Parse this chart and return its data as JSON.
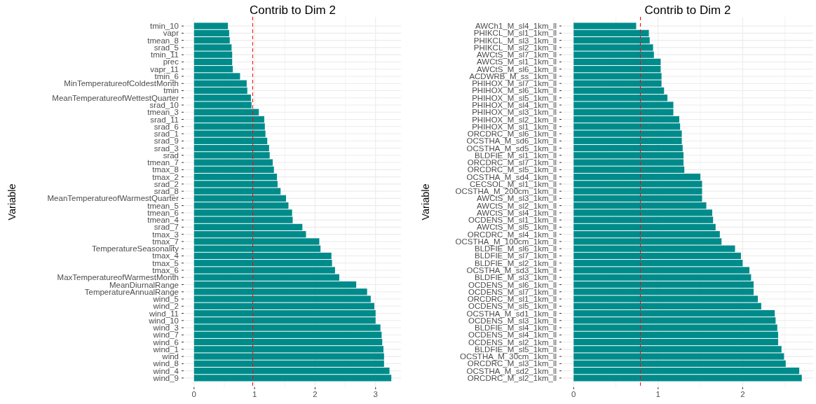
{
  "chart_data": [
    {
      "type": "bar",
      "orientation": "horizontal",
      "title": "Contrib to Dim 2",
      "ylabel": "Variable",
      "color": "#008b8b",
      "grid": true,
      "categories": [
        "tmin_10",
        "vapr",
        "tmean_8",
        "srad_5",
        "tmin_11",
        "prec",
        "vapr_11",
        "tmin_6",
        "MinTemperatureofColdestMonth",
        "tmin",
        "MeanTemperatureofWettestQuarter",
        "srad_10",
        "tmean_3",
        "srad_11",
        "srad_6",
        "srad_1",
        "srad_9",
        "srad_3",
        "srad",
        "tmean_7",
        "tmax_8",
        "tmax_2",
        "srad_2",
        "srad_8",
        "MeanTemperatureofWarmestQuarter",
        "tmean_5",
        "tmean_6",
        "tmean_4",
        "srad_7",
        "tmax_3",
        "tmax_7",
        "TemperatureSeasonality",
        "tmax_4",
        "tmax_5",
        "tmax_6",
        "MaxTemperatureofWarmestMonth",
        "MeanDiurnalRange",
        "TemperatureAnnualRange",
        "wind_5",
        "wind_2",
        "wind_11",
        "wind_10",
        "wind_3",
        "wind_7",
        "wind_6",
        "wind_1",
        "wind",
        "wind_8",
        "wind_4",
        "wind_9"
      ],
      "values": [
        0.56,
        0.58,
        0.59,
        0.62,
        0.63,
        0.63,
        0.64,
        0.76,
        0.87,
        0.88,
        0.94,
        0.95,
        1.07,
        1.16,
        1.17,
        1.18,
        1.21,
        1.24,
        1.25,
        1.3,
        1.32,
        1.37,
        1.38,
        1.43,
        1.52,
        1.56,
        1.62,
        1.63,
        1.79,
        1.85,
        2.07,
        2.09,
        2.27,
        2.28,
        2.33,
        2.4,
        2.68,
        2.86,
        2.92,
        2.98,
        3.0,
        3.0,
        3.08,
        3.1,
        3.11,
        3.13,
        3.14,
        3.14,
        3.23,
        3.26
      ],
      "xlim": [
        -0.16,
        3.42
      ],
      "xticks": [
        0,
        1,
        2,
        3
      ],
      "ref_lines": [
        {
          "axis": "x",
          "value": 0.97,
          "color": "#ff0000",
          "line_style": "dashed"
        }
      ]
    },
    {
      "type": "bar",
      "orientation": "horizontal",
      "title": "Contrib to Dim 2",
      "ylabel": "Variable",
      "color": "#008b8b",
      "grid": true,
      "categories": [
        "AWCh1_M_sl4_1km_ll",
        "PHIKCL_M_sl1_1km_ll",
        "PHIKCL_M_sl3_1km_ll",
        "PHIKCL_M_sl2_1km_ll",
        "AWCtS_M_sl7_1km_ll",
        "AWCtS_M_sl1_1km_ll",
        "AWCtS_M_sl6_1km_ll",
        "ACDWRB_M_ss_1km_ll",
        "PHIHOX_M_sl7_1km_ll",
        "PHIHOX_M_sl6_1km_ll",
        "PHIHOX_M_sl5_1km_ll",
        "PHIHOX_M_sl4_1km_ll",
        "PHIHOX_M_sl3_1km_ll",
        "PHIHOX_M_sl2_1km_ll",
        "PHIHOX_M_sl1_1km_ll",
        "ORCDRC_M_sl6_1km_ll",
        "OCSTHA_M_sd6_1km_ll",
        "OCSTHA_M_sd5_1km_ll",
        "BLDFIE_M_sl1_1km_ll",
        "ORCDRC_M_sl7_1km_ll",
        "ORCDRC_M_sl5_1km_ll",
        "OCSTHA_M_sd4_1km_ll",
        "CECSOL_M_sl1_1km_ll",
        "OCSTHA_M_200cm_1km_ll",
        "AWCtS_M_sl3_1km_ll",
        "AWCtS_M_sl2_1km_ll",
        "AWCtS_M_sl4_1km_ll",
        "OCDENS_M_sl1_1km_ll",
        "AWCtS_M_sl5_1km_ll",
        "ORCDRC_M_sl4_1km_ll",
        "OCSTHA_M_100cm_1km_ll",
        "BLDFIE_M_sl6_1km_ll",
        "BLDFIE_M_sl7_1km_ll",
        "BLDFIE_M_sl2_1km_ll",
        "OCSTHA_M_sd3_1km_ll",
        "BLDFIE_M_sl3_1km_ll",
        "OCDENS_M_sl6_1km_ll",
        "OCDENS_M_sl7_1km_ll",
        "ORCDRC_M_sl1_1km_ll",
        "OCDENS_M_sl5_1km_ll",
        "OCSTHA_M_sd1_1km_ll",
        "OCDENS_M_sl3_1km_ll",
        "BLDFIE_M_sl4_1km_ll",
        "OCDENS_M_sl4_1km_ll",
        "OCDENS_M_sl2_1km_ll",
        "BLDFIE_M_sl5_1km_ll",
        "OCSTHA_M_30cm_1km_ll",
        "ORCDRC_M_sl3_1km_ll",
        "OCSTHA_M_sd2_1km_ll",
        "ORCDRC_M_sl2_1km_ll"
      ],
      "values": [
        0.74,
        0.89,
        0.9,
        0.94,
        0.95,
        1.03,
        1.03,
        1.04,
        1.04,
        1.07,
        1.11,
        1.18,
        1.18,
        1.25,
        1.26,
        1.28,
        1.28,
        1.29,
        1.3,
        1.3,
        1.31,
        1.5,
        1.52,
        1.52,
        1.52,
        1.57,
        1.64,
        1.65,
        1.68,
        1.73,
        1.75,
        1.91,
        1.98,
        2.0,
        2.08,
        2.1,
        2.13,
        2.13,
        2.18,
        2.22,
        2.38,
        2.39,
        2.41,
        2.42,
        2.42,
        2.46,
        2.49,
        2.51,
        2.67,
        2.7
      ],
      "xlim": [
        -0.135,
        2.835
      ],
      "xticks": [
        0,
        1,
        2
      ],
      "ref_lines": [
        {
          "axis": "x",
          "value": 0.79,
          "color": "#ff0000",
          "line_style": "dashed"
        }
      ]
    }
  ]
}
